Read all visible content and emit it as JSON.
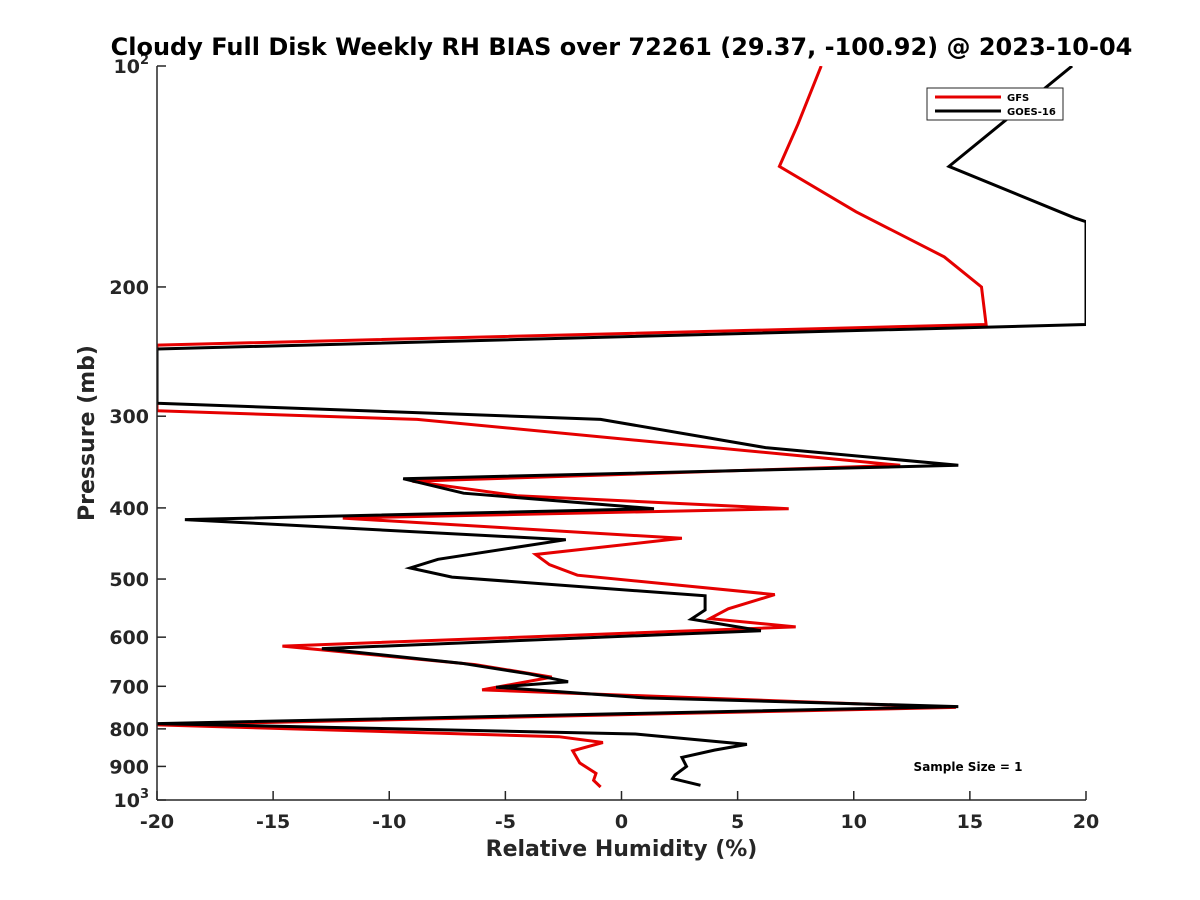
{
  "chart_data": {
    "type": "line",
    "title": "Cloudy Full Disk Weekly RH BIAS over 72261 (29.37, -100.92) @ 2023-10-04",
    "xlabel": "Relative Humidity (%)",
    "ylabel": "Pressure (mb)",
    "xlim": [
      -20,
      20
    ],
    "ylim": [
      100,
      1000
    ],
    "y_scale": "log",
    "y_reversed": true,
    "grid": false,
    "legend_position": "top-right",
    "x_ticks": [
      -20,
      -15,
      -10,
      -5,
      0,
      5,
      10,
      15,
      20
    ],
    "x_tick_labels": [
      "-20",
      "-15",
      "-10",
      "-5",
      "0",
      "5",
      "10",
      "15",
      "20"
    ],
    "y_ticks": [
      {
        "value": 100,
        "base": "10",
        "exp": "2"
      },
      {
        "value": 200,
        "label": "200"
      },
      {
        "value": 300,
        "label": "300"
      },
      {
        "value": 400,
        "label": "400"
      },
      {
        "value": 500,
        "label": "500"
      },
      {
        "value": 600,
        "label": "600"
      },
      {
        "value": 700,
        "label": "700"
      },
      {
        "value": 800,
        "label": "800"
      },
      {
        "value": 900,
        "label": "900"
      },
      {
        "value": 1000,
        "base": "10",
        "exp": "3"
      }
    ],
    "annotation": "Sample Size = 1",
    "series": [
      {
        "name": "GFS",
        "color": "#e50000",
        "points": [
          {
            "x": 8.6,
            "y": 100
          },
          {
            "x": 7.6,
            "y": 120
          },
          {
            "x": 6.8,
            "y": 137
          },
          {
            "x": 10.1,
            "y": 158
          },
          {
            "x": 13.9,
            "y": 182
          },
          {
            "x": 15.5,
            "y": 200
          },
          {
            "x": 15.7,
            "y": 225
          },
          {
            "x": -20,
            "y": 240
          },
          {
            "x": -20,
            "y": 295
          },
          {
            "x": -8.8,
            "y": 303
          },
          {
            "x": 12.0,
            "y": 350
          },
          {
            "x": -9.0,
            "y": 368
          },
          {
            "x": -4.5,
            "y": 385
          },
          {
            "x": 7.2,
            "y": 401
          },
          {
            "x": -12.0,
            "y": 413
          },
          {
            "x": 2.6,
            "y": 440
          },
          {
            "x": -3.7,
            "y": 463
          },
          {
            "x": -3.1,
            "y": 478
          },
          {
            "x": -1.9,
            "y": 494
          },
          {
            "x": 6.6,
            "y": 525
          },
          {
            "x": 4.6,
            "y": 549
          },
          {
            "x": 3.8,
            "y": 566
          },
          {
            "x": 7.5,
            "y": 581
          },
          {
            "x": -14.6,
            "y": 617
          },
          {
            "x": -6.3,
            "y": 654
          },
          {
            "x": -3.0,
            "y": 680
          },
          {
            "x": -6.0,
            "y": 708
          },
          {
            "x": 14.4,
            "y": 748
          },
          {
            "x": -20,
            "y": 790
          },
          {
            "x": -2.7,
            "y": 820
          },
          {
            "x": -0.8,
            "y": 835
          },
          {
            "x": -2.1,
            "y": 857
          },
          {
            "x": -1.8,
            "y": 890
          },
          {
            "x": -1.1,
            "y": 920
          },
          {
            "x": -1.2,
            "y": 940
          },
          {
            "x": -0.9,
            "y": 960
          }
        ]
      },
      {
        "name": "GOES-16",
        "color": "#000000",
        "points": [
          {
            "x": 19.4,
            "y": 100
          },
          {
            "x": 14.1,
            "y": 137
          },
          {
            "x": 19.5,
            "y": 161
          },
          {
            "x": 20,
            "y": 163
          },
          {
            "x": 20,
            "y": 225
          },
          {
            "x": -20,
            "y": 243
          },
          {
            "x": -20,
            "y": 288
          },
          {
            "x": -8.4,
            "y": 297
          },
          {
            "x": -0.9,
            "y": 303
          },
          {
            "x": 6.2,
            "y": 331
          },
          {
            "x": 14.5,
            "y": 350
          },
          {
            "x": -9.4,
            "y": 365
          },
          {
            "x": -6.8,
            "y": 382
          },
          {
            "x": 1.4,
            "y": 401
          },
          {
            "x": -18.8,
            "y": 415
          },
          {
            "x": -2.4,
            "y": 442
          },
          {
            "x": -7.9,
            "y": 470
          },
          {
            "x": -9.1,
            "y": 483
          },
          {
            "x": -7.3,
            "y": 497
          },
          {
            "x": 3.6,
            "y": 527
          },
          {
            "x": 3.6,
            "y": 551
          },
          {
            "x": 3.0,
            "y": 567
          },
          {
            "x": 6.0,
            "y": 588
          },
          {
            "x": -12.9,
            "y": 622
          },
          {
            "x": -6.9,
            "y": 651
          },
          {
            "x": -4.0,
            "y": 673
          },
          {
            "x": -2.3,
            "y": 690
          },
          {
            "x": -5.4,
            "y": 702
          },
          {
            "x": 1.0,
            "y": 726
          },
          {
            "x": 14.5,
            "y": 746
          },
          {
            "x": -20,
            "y": 787
          },
          {
            "x": 0.6,
            "y": 813
          },
          {
            "x": 5.4,
            "y": 840
          },
          {
            "x": 4.0,
            "y": 855
          },
          {
            "x": 2.6,
            "y": 875
          },
          {
            "x": 2.8,
            "y": 900
          },
          {
            "x": 2.3,
            "y": 925
          },
          {
            "x": 2.2,
            "y": 935
          },
          {
            "x": 3.4,
            "y": 955
          }
        ]
      }
    ]
  }
}
